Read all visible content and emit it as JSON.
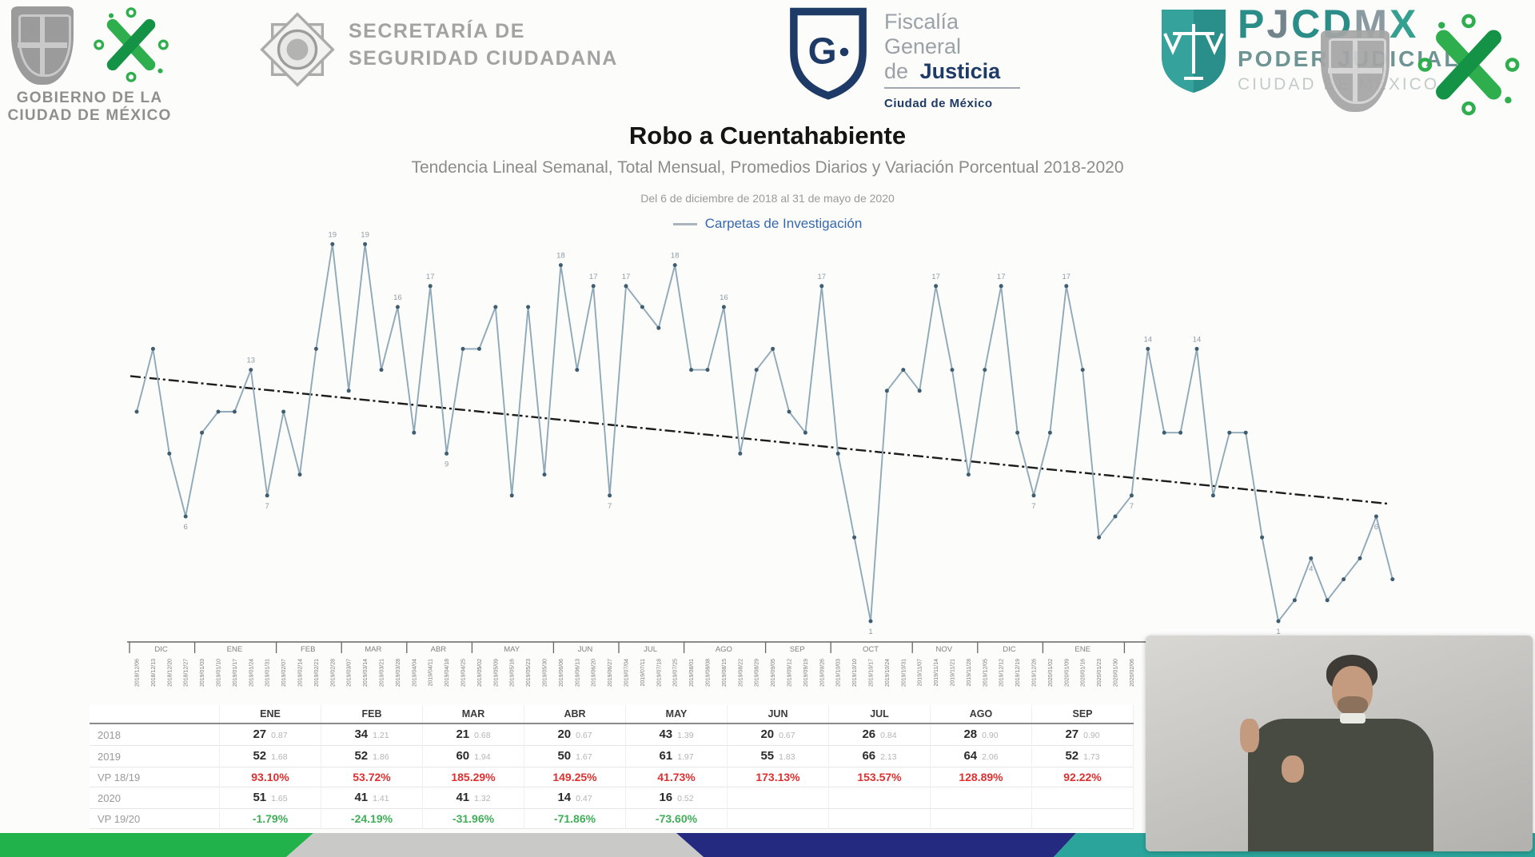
{
  "header": {
    "gob": {
      "line1": "GOBIERNO DE LA",
      "line2": "CIUDAD DE MÉXICO"
    },
    "ssc": {
      "line1": "SECRETARÍA DE",
      "line2": "SEGURIDAD CIUDADANA"
    },
    "fgj": {
      "line1": "Fiscalía",
      "line2": "General",
      "line3_pre": "de",
      "line3_bold": "Justicia",
      "line4": "Ciudad de México",
      "monogram": "FGJ"
    },
    "pj": {
      "acronym": "PJCDMX",
      "letter_colors": [
        "#2a8d88",
        "#73848c",
        "#2a8d88",
        "#2a8d88",
        "#8a9aa0",
        "#35a08f"
      ],
      "line2": "PODER JUDICIAL",
      "line3": "CIUDAD DE MÉXICO"
    }
  },
  "icons": {
    "gob-shield-icon": "gray heraldic shield (escudo de la Ciudad de México)",
    "cdmx-x-icon": "green interlocking X logo of CDMX",
    "ssc-badge-icon": "eight-point gray police star badge",
    "fgj-shield-icon": "navy shield monogram FGJ",
    "pj-scales-icon": "white scales of justice on teal shield",
    "pj-crest-icon": "gray watermark crest",
    "sign-language-interpreter": "video inset of sign language interpreter"
  },
  "chart_data": {
    "type": "line",
    "title": "Robo a Cuentahabiente",
    "subtitle": "Tendencia Lineal Semanal, Total Mensual, Promedios Diarios y Variación Porcentual 2018-2020",
    "period": "Del 6 de diciembre de 2018 al 31 de mayo de 2020",
    "legend": "Carpetas de Investigación",
    "legend_position": "top-center",
    "grid": false,
    "y_range_estimated": [
      1,
      19
    ],
    "line_color": "#8fa9b8",
    "marker_color": "#3f5d70",
    "trend_color": "#1c1c1c",
    "trend_line": {
      "style": "dash-dot",
      "start_value": 12.7,
      "end_value": 6.6
    },
    "month_bands": [
      "DIC",
      "ENE",
      "FEB",
      "MAR",
      "ABR",
      "MAY",
      "JUN",
      "JUL",
      "AGO",
      "SEP",
      "OCT",
      "NOV",
      "DIC",
      "ENE",
      "FEB",
      "MAR",
      "ABR",
      "MAY"
    ],
    "month_spans": [
      [
        0,
        3
      ],
      [
        4,
        8
      ],
      [
        9,
        12
      ],
      [
        13,
        16
      ],
      [
        17,
        20
      ],
      [
        21,
        25
      ],
      [
        26,
        29
      ],
      [
        30,
        33
      ],
      [
        34,
        38
      ],
      [
        39,
        42
      ],
      [
        43,
        47
      ],
      [
        48,
        51
      ],
      [
        52,
        55
      ],
      [
        56,
        60
      ],
      [
        61,
        64
      ],
      [
        65,
        68
      ],
      [
        69,
        73
      ],
      [
        74,
        77
      ]
    ],
    "labeled_points": [
      3,
      7,
      8,
      12,
      14,
      16,
      18,
      19,
      26,
      28,
      29,
      30,
      33,
      36,
      42,
      45,
      49,
      53,
      55,
      57,
      61,
      62,
      65,
      70,
      72,
      76
    ],
    "weeks": [
      {
        "date": "2018/12/06",
        "value": 11
      },
      {
        "date": "2018/12/13",
        "value": 14
      },
      {
        "date": "2018/12/20",
        "value": 9
      },
      {
        "date": "2018/12/27",
        "value": 6
      },
      {
        "date": "2019/01/03",
        "value": 10
      },
      {
        "date": "2019/01/10",
        "value": 11
      },
      {
        "date": "2019/01/17",
        "value": 11
      },
      {
        "date": "2019/01/24",
        "value": 13
      },
      {
        "date": "2019/01/31",
        "value": 7
      },
      {
        "date": "2019/02/07",
        "value": 11
      },
      {
        "date": "2019/02/14",
        "value": 8
      },
      {
        "date": "2019/02/21",
        "value": 14
      },
      {
        "date": "2019/02/28",
        "value": 19
      },
      {
        "date": "2019/03/07",
        "value": 12
      },
      {
        "date": "2019/03/14",
        "value": 19
      },
      {
        "date": "2019/03/21",
        "value": 13
      },
      {
        "date": "2019/03/28",
        "value": 16
      },
      {
        "date": "2019/04/04",
        "value": 10
      },
      {
        "date": "2019/04/11",
        "value": 17
      },
      {
        "date": "2019/04/18",
        "value": 9
      },
      {
        "date": "2019/04/25",
        "value": 14
      },
      {
        "date": "2019/05/02",
        "value": 14
      },
      {
        "date": "2019/05/09",
        "value": 16
      },
      {
        "date": "2019/05/16",
        "value": 7
      },
      {
        "date": "2019/05/23",
        "value": 16
      },
      {
        "date": "2019/05/30",
        "value": 8
      },
      {
        "date": "2019/06/06",
        "value": 18
      },
      {
        "date": "2019/06/13",
        "value": 13
      },
      {
        "date": "2019/06/20",
        "value": 17
      },
      {
        "date": "2019/06/27",
        "value": 7
      },
      {
        "date": "2019/07/04",
        "value": 17
      },
      {
        "date": "2019/07/11",
        "value": 16
      },
      {
        "date": "2019/07/18",
        "value": 15
      },
      {
        "date": "2019/07/25",
        "value": 18
      },
      {
        "date": "2019/08/01",
        "value": 13
      },
      {
        "date": "2019/08/08",
        "value": 13
      },
      {
        "date": "2019/08/15",
        "value": 16
      },
      {
        "date": "2019/08/22",
        "value": 9
      },
      {
        "date": "2019/08/29",
        "value": 13
      },
      {
        "date": "2019/09/05",
        "value": 14
      },
      {
        "date": "2019/09/12",
        "value": 11
      },
      {
        "date": "2019/09/19",
        "value": 10
      },
      {
        "date": "2019/09/26",
        "value": 17
      },
      {
        "date": "2019/10/03",
        "value": 9
      },
      {
        "date": "2019/10/10",
        "value": 5
      },
      {
        "date": "2019/10/17",
        "value": 1
      },
      {
        "date": "2019/10/24",
        "value": 12
      },
      {
        "date": "2019/10/31",
        "value": 13
      },
      {
        "date": "2019/11/07",
        "value": 12
      },
      {
        "date": "2019/11/14",
        "value": 17
      },
      {
        "date": "2019/11/21",
        "value": 13
      },
      {
        "date": "2019/11/28",
        "value": 8
      },
      {
        "date": "2019/12/05",
        "value": 13
      },
      {
        "date": "2019/12/12",
        "value": 17
      },
      {
        "date": "2019/12/19",
        "value": 10
      },
      {
        "date": "2019/12/26",
        "value": 7
      },
      {
        "date": "2020/01/02",
        "value": 10
      },
      {
        "date": "2020/01/09",
        "value": 17
      },
      {
        "date": "2020/01/16",
        "value": 13
      },
      {
        "date": "2020/01/23",
        "value": 5
      },
      {
        "date": "2020/01/30",
        "value": 6
      },
      {
        "date": "2020/02/06",
        "value": 7
      },
      {
        "date": "2020/02/13",
        "value": 14
      },
      {
        "date": "2020/02/20",
        "value": 10
      },
      {
        "date": "2020/02/27",
        "value": 10
      },
      {
        "date": "2020/03/05",
        "value": 14
      },
      {
        "date": "2020/03/12",
        "value": 7
      },
      {
        "date": "2020/03/19",
        "value": 10
      },
      {
        "date": "2020/03/26",
        "value": 10
      },
      {
        "date": "2020/04/02",
        "value": 5
      },
      {
        "date": "2020/04/09",
        "value": 1
      },
      {
        "date": "2020/04/16",
        "value": 2
      },
      {
        "date": "2020/04/23",
        "value": 4
      },
      {
        "date": "2020/04/30",
        "value": 2
      },
      {
        "date": "2020/05/07",
        "value": 3
      },
      {
        "date": "2020/05/14",
        "value": 4
      },
      {
        "date": "2020/05/21",
        "value": 6
      },
      {
        "date": "2020/05/28",
        "value": 3
      }
    ]
  },
  "table": {
    "columns": [
      "ENE",
      "FEB",
      "MAR",
      "ABR",
      "MAY",
      "JUN",
      "JUL",
      "AGO",
      "SEP"
    ],
    "rows": [
      {
        "label": "2018",
        "type": "year",
        "cells": [
          [
            "27",
            "0.87"
          ],
          [
            "34",
            "1.21"
          ],
          [
            "21",
            "0.68"
          ],
          [
            "20",
            "0.67"
          ],
          [
            "43",
            "1.39"
          ],
          [
            "20",
            "0.67"
          ],
          [
            "26",
            "0.84"
          ],
          [
            "28",
            "0.90"
          ],
          [
            "27",
            "0.90"
          ]
        ]
      },
      {
        "label": "2019",
        "type": "year",
        "cells": [
          [
            "52",
            "1.68"
          ],
          [
            "52",
            "1.86"
          ],
          [
            "60",
            "1.94"
          ],
          [
            "50",
            "1.67"
          ],
          [
            "61",
            "1.97"
          ],
          [
            "55",
            "1.83"
          ],
          [
            "66",
            "2.13"
          ],
          [
            "64",
            "2.06"
          ],
          [
            "52",
            "1.73"
          ]
        ]
      },
      {
        "label": "VP 18/19",
        "type": "vp-red",
        "cells": [
          "93.10%",
          "53.72%",
          "185.29%",
          "149.25%",
          "41.73%",
          "173.13%",
          "153.57%",
          "128.89%",
          "92.22%"
        ]
      },
      {
        "label": "2020",
        "type": "year",
        "cells": [
          [
            "51",
            "1.65"
          ],
          [
            "41",
            "1.41"
          ],
          [
            "41",
            "1.32"
          ],
          [
            "14",
            "0.47"
          ],
          [
            "16",
            "0.52"
          ],
          "",
          "",
          "",
          ""
        ]
      },
      {
        "label": "VP 19/20",
        "type": "vp-green",
        "cells": [
          "-1.79%",
          "-24.19%",
          "-31.96%",
          "-71.86%",
          "-73.60%",
          "",
          "",
          "",
          ""
        ]
      }
    ]
  },
  "footer": {
    "bar_colors": [
      "#21b24c",
      "#c9c9c7",
      "#232a80",
      "#2ba59b"
    ]
  }
}
